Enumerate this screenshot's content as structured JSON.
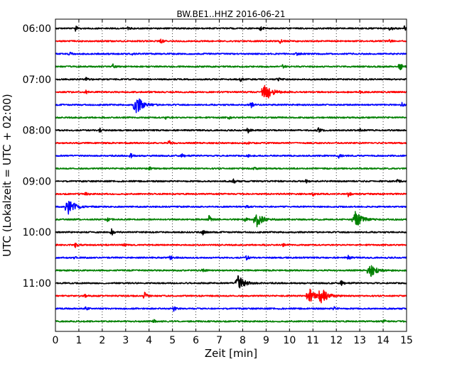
{
  "chart_data": {
    "type": "line",
    "title": "BW.BE1..HHZ 2016-06-21",
    "xlabel": "Zeit  [min]",
    "ylabel": "UTC (Lokalzeit = UTC + 02:00)",
    "xlim": [
      0,
      15
    ],
    "x_ticks": [
      0,
      1,
      2,
      3,
      4,
      5,
      6,
      7,
      8,
      9,
      10,
      11,
      12,
      13,
      14,
      15
    ],
    "y_ticks": [
      "06:00",
      "07:00",
      "08:00",
      "09:00",
      "10:00",
      "11:00"
    ],
    "rows_per_hour": 4,
    "grid": true,
    "colors": [
      "#000000",
      "#ff0000",
      "#0000ff",
      "#008000"
    ],
    "traces": [
      {
        "start": "06:00",
        "color": "#000000",
        "events": [
          [
            0.85,
            0.5
          ],
          [
            3.05,
            0.35
          ],
          [
            8.75,
            0.4
          ],
          [
            14.3,
            0.6
          ],
          [
            14.9,
            0.5
          ]
        ]
      },
      {
        "start": "06:15",
        "color": "#ff0000",
        "events": [
          [
            4.5,
            0.4
          ],
          [
            9.6,
            0.35
          ],
          [
            14.25,
            0.4
          ]
        ]
      },
      {
        "start": "06:30",
        "color": "#0000ff",
        "events": [
          [
            0.6,
            0.3
          ],
          [
            3.3,
            0.3
          ],
          [
            10.3,
            0.25
          ]
        ]
      },
      {
        "start": "06:45",
        "color": "#008000",
        "events": [
          [
            2.45,
            0.5
          ],
          [
            9.7,
            0.3
          ],
          [
            14.7,
            1.0
          ]
        ]
      },
      {
        "start": "07:00",
        "color": "#000000",
        "events": [
          [
            1.3,
            0.3
          ],
          [
            7.9,
            0.6
          ],
          [
            9.5,
            0.3
          ]
        ]
      },
      {
        "start": "07:15",
        "color": "#ff0000",
        "events": [
          [
            1.3,
            0.3
          ],
          [
            8.95,
            2.0
          ],
          [
            13.0,
            0.25
          ]
        ]
      },
      {
        "start": "07:30",
        "color": "#0000ff",
        "events": [
          [
            3.45,
            1.9
          ],
          [
            8.35,
            0.7
          ],
          [
            14.8,
            0.4
          ]
        ]
      },
      {
        "start": "07:45",
        "color": "#008000",
        "events": [
          [
            4.7,
            0.25
          ],
          [
            7.4,
            0.25
          ]
        ]
      },
      {
        "start": "08:00",
        "color": "#000000",
        "events": [
          [
            1.9,
            0.55
          ],
          [
            8.2,
            0.6
          ],
          [
            11.2,
            0.6
          ],
          [
            13.0,
            0.35
          ]
        ]
      },
      {
        "start": "08:15",
        "color": "#ff0000",
        "events": [
          [
            4.85,
            0.5
          ],
          [
            8.2,
            0.25
          ]
        ]
      },
      {
        "start": "08:30",
        "color": "#0000ff",
        "events": [
          [
            3.2,
            0.5
          ],
          [
            5.4,
            0.3
          ],
          [
            8.2,
            0.3
          ],
          [
            12.1,
            0.4
          ]
        ]
      },
      {
        "start": "08:45",
        "color": "#008000",
        "events": [
          [
            4.0,
            0.3
          ],
          [
            8.5,
            0.25
          ]
        ]
      },
      {
        "start": "09:00",
        "color": "#000000",
        "events": [
          [
            7.6,
            0.5
          ],
          [
            10.7,
            0.4
          ],
          [
            14.6,
            0.3
          ]
        ]
      },
      {
        "start": "09:15",
        "color": "#ff0000",
        "events": [
          [
            1.3,
            0.3
          ],
          [
            11.0,
            0.35
          ],
          [
            12.5,
            0.5
          ]
        ]
      },
      {
        "start": "09:30",
        "color": "#0000ff",
        "events": [
          [
            0.55,
            1.7
          ],
          [
            8.15,
            0.4
          ]
        ]
      },
      {
        "start": "09:45",
        "color": "#008000",
        "events": [
          [
            2.2,
            0.4
          ],
          [
            6.55,
            0.9
          ],
          [
            8.1,
            0.4
          ],
          [
            8.6,
            1.4
          ],
          [
            12.8,
            1.8
          ]
        ]
      },
      {
        "start": "10:00",
        "color": "#000000",
        "events": [
          [
            2.4,
            0.7
          ],
          [
            6.3,
            0.4
          ]
        ]
      },
      {
        "start": "10:15",
        "color": "#ff0000",
        "events": [
          [
            0.85,
            0.6
          ],
          [
            2.9,
            0.3
          ],
          [
            9.7,
            0.3
          ]
        ]
      },
      {
        "start": "10:30",
        "color": "#0000ff",
        "events": [
          [
            0.8,
            0.3
          ],
          [
            4.9,
            0.4
          ],
          [
            8.15,
            0.5
          ],
          [
            12.5,
            0.4
          ]
        ]
      },
      {
        "start": "10:45",
        "color": "#008000",
        "events": [
          [
            6.3,
            0.3
          ],
          [
            13.45,
            1.2
          ]
        ]
      },
      {
        "start": "11:00",
        "color": "#000000",
        "events": [
          [
            7.8,
            1.6
          ],
          [
            12.2,
            0.5
          ]
        ]
      },
      {
        "start": "11:15",
        "color": "#ff0000",
        "events": [
          [
            1.25,
            0.4
          ],
          [
            3.8,
            0.8
          ],
          [
            10.85,
            1.3
          ],
          [
            11.35,
            1.5
          ]
        ]
      },
      {
        "start": "11:30",
        "color": "#0000ff",
        "events": [
          [
            1.3,
            0.4
          ],
          [
            5.05,
            0.4
          ],
          [
            11.9,
            0.3
          ]
        ]
      },
      {
        "start": "11:45",
        "color": "#008000",
        "events": [
          [
            4.2,
            0.3
          ],
          [
            14.0,
            0.3
          ]
        ]
      }
    ]
  }
}
